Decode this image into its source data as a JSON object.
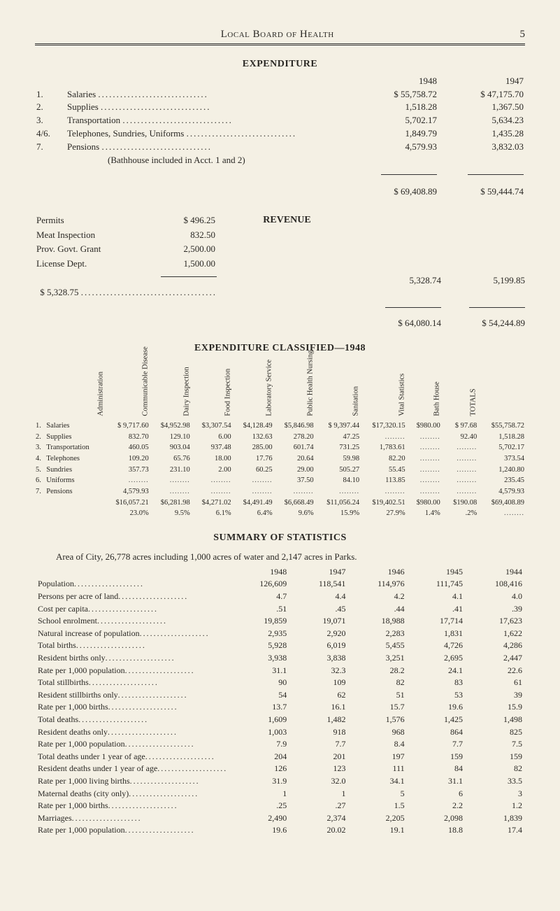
{
  "header": {
    "title": "Local Board of Health",
    "page_number": "5"
  },
  "expenditure": {
    "title": "EXPENDITURE",
    "year_cols": [
      "1948",
      "1947"
    ],
    "rows": [
      {
        "num": "1.",
        "label": "Salaries",
        "y1948": "$ 55,758.72",
        "y1947": "$ 47,175.70"
      },
      {
        "num": "2.",
        "label": "Supplies",
        "y1948": "1,518.28",
        "y1947": "1,367.50"
      },
      {
        "num": "3.",
        "label": "Transportation",
        "y1948": "5,702.17",
        "y1947": "5,634.23"
      },
      {
        "num": "4/6.",
        "label": "Telephones, Sundries, Uniforms",
        "y1948": "1,849.79",
        "y1947": "1,435.28"
      },
      {
        "num": "7.",
        "label": "Pensions",
        "y1948": "4,579.93",
        "y1947": "3,832.03"
      }
    ],
    "note": "(Bathhouse included in Acct. 1 and 2)",
    "total_1948": "$ 69,408.89",
    "total_1947": "$ 59,444.74"
  },
  "revenue": {
    "title": "REVENUE",
    "items": [
      {
        "label": "Permits",
        "amount": "$    496.25"
      },
      {
        "label": "Meat Inspection",
        "amount": "832.50"
      },
      {
        "label": "Prov. Govt. Grant",
        "amount": "2,500.00"
      },
      {
        "label": "License Dept.",
        "amount": "1,500.00"
      }
    ],
    "subtotal_left": "$ 5,328.75",
    "subtotal_1948": "5,328.74",
    "subtotal_1947": "5,199.85",
    "grand_1948": "$ 64,080.14",
    "grand_1947": "$ 54,244.89"
  },
  "classified": {
    "title": "EXPENDITURE CLASSIFIED—1948",
    "cols": [
      "Administration",
      "Communicable Disease",
      "Dairy Inspection",
      "Food Inspection",
      "Laboratory Service",
      "Public Health Nursing",
      "Sanitation",
      "Vital Statistics",
      "Bath House",
      "TOTALS"
    ],
    "rows": [
      {
        "n": "1.",
        "label": "Salaries",
        "v": [
          "$ 9,717.60",
          "$4,952.98",
          "$3,307.54",
          "$4,128.49",
          "$5,846.98",
          "$ 9,397.44",
          "$17,320.15",
          "$980.00",
          "$ 97.68",
          "$55,758.72"
        ]
      },
      {
        "n": "2.",
        "label": "Supplies",
        "v": [
          "832.70",
          "129.10",
          "6.00",
          "132.63",
          "278.20",
          "47.25",
          "",
          "",
          "92.40",
          "1,518.28"
        ]
      },
      {
        "n": "3.",
        "label": "Transportation",
        "v": [
          "460.05",
          "903.04",
          "937.48",
          "285.00",
          "601.74",
          "731.25",
          "1,783.61",
          "",
          "",
          "5,702.17"
        ]
      },
      {
        "n": "4.",
        "label": "Telephones",
        "v": [
          "109.20",
          "65.76",
          "18.00",
          "17.76",
          "20.64",
          "59.98",
          "82.20",
          "",
          "",
          "373.54"
        ]
      },
      {
        "n": "5.",
        "label": "Sundries",
        "v": [
          "357.73",
          "231.10",
          "2.00",
          "60.25",
          "29.00",
          "505.27",
          "55.45",
          "",
          "",
          "1,240.80"
        ]
      },
      {
        "n": "6.",
        "label": "Uniforms",
        "v": [
          "",
          "",
          "",
          "",
          "37.50",
          "84.10",
          "113.85",
          "",
          "",
          "235.45"
        ]
      },
      {
        "n": "7.",
        "label": "Pensions",
        "v": [
          "4,579.93",
          "",
          "",
          "",
          "",
          "",
          "",
          "",
          "",
          "4,579.93"
        ]
      }
    ],
    "totals": {
      "n": "",
      "label": "",
      "v": [
        "$16,057.21",
        "$6,281.98",
        "$4,271.02",
        "$4,491.49",
        "$6,668.49",
        "$11,056.24",
        "$19,402.51",
        "$980.00",
        "$190.08",
        "$69,408.89"
      ]
    },
    "pct": {
      "n": "",
      "label": "",
      "v": [
        "23.0%",
        "9.5%",
        "6.1%",
        "6.4%",
        "9.6%",
        "15.9%",
        "27.9%",
        "1.4%",
        ".2%",
        ""
      ]
    }
  },
  "summary": {
    "title": "SUMMARY OF STATISTICS",
    "intro": "Area of City, 26,778 acres including 1,000 acres of water and 2,147 acres in Parks.",
    "years": [
      "1948",
      "1947",
      "1946",
      "1945",
      "1944"
    ],
    "rows": [
      {
        "label": "Population",
        "v": [
          "126,609",
          "118,541",
          "114,976",
          "111,745",
          "108,416"
        ]
      },
      {
        "label": "Persons per acre of land",
        "v": [
          "4.7",
          "4.4",
          "4.2",
          "4.1",
          "4.0"
        ]
      },
      {
        "label": "Cost per capita",
        "v": [
          ".51",
          ".45",
          ".44",
          ".41",
          ".39"
        ]
      },
      {
        "label": "School enrolment",
        "v": [
          "19,859",
          "19,071",
          "18,988",
          "17,714",
          "17,623"
        ]
      },
      {
        "label": "Natural increase of population",
        "v": [
          "2,935",
          "2,920",
          "2,283",
          "1,831",
          "1,622"
        ]
      },
      {
        "label": "Total births",
        "v": [
          "5,928",
          "6,019",
          "5,455",
          "4,726",
          "4,286"
        ]
      },
      {
        "label": "Resident births only",
        "v": [
          "3,938",
          "3,838",
          "3,251",
          "2,695",
          "2,447"
        ]
      },
      {
        "label": "Rate per 1,000 population",
        "v": [
          "31.1",
          "32.3",
          "28.2",
          "24.1",
          "22.6"
        ]
      },
      {
        "label": "Total stillbirths",
        "v": [
          "90",
          "109",
          "82",
          "83",
          "61"
        ]
      },
      {
        "label": "Resident stillbirths only",
        "v": [
          "54",
          "62",
          "51",
          "53",
          "39"
        ]
      },
      {
        "label": "Rate per 1,000 births",
        "v": [
          "13.7",
          "16.1",
          "15.7",
          "19.6",
          "15.9"
        ]
      },
      {
        "label": "Total deaths",
        "v": [
          "1,609",
          "1,482",
          "1,576",
          "1,425",
          "1,498"
        ]
      },
      {
        "label": "Resident deaths only",
        "v": [
          "1,003",
          "918",
          "968",
          "864",
          "825"
        ]
      },
      {
        "label": "Rate per 1,000 population",
        "v": [
          "7.9",
          "7.7",
          "8.4",
          "7.7",
          "7.5"
        ]
      },
      {
        "label": "Total deaths under 1 year of age",
        "v": [
          "204",
          "201",
          "197",
          "159",
          "159"
        ]
      },
      {
        "label": "Resident deaths under 1 year of age",
        "v": [
          "126",
          "123",
          "111",
          "84",
          "82"
        ]
      },
      {
        "label": "Rate per 1,000 living births",
        "v": [
          "31.9",
          "32.0",
          "34.1",
          "31.1",
          "33.5"
        ]
      },
      {
        "label": "Maternal deaths (city only)",
        "v": [
          "1",
          "1",
          "5",
          "6",
          "3"
        ]
      },
      {
        "label": "Rate per 1,000 births",
        "v": [
          ".25",
          ".27",
          "1.5",
          "2.2",
          "1.2"
        ]
      },
      {
        "label": "Marriages",
        "v": [
          "2,490",
          "2,374",
          "2,205",
          "2,098",
          "1,839"
        ]
      },
      {
        "label": "Rate per 1,000 population",
        "v": [
          "19.6",
          "20.02",
          "19.1",
          "18.8",
          "17.4"
        ]
      }
    ]
  }
}
